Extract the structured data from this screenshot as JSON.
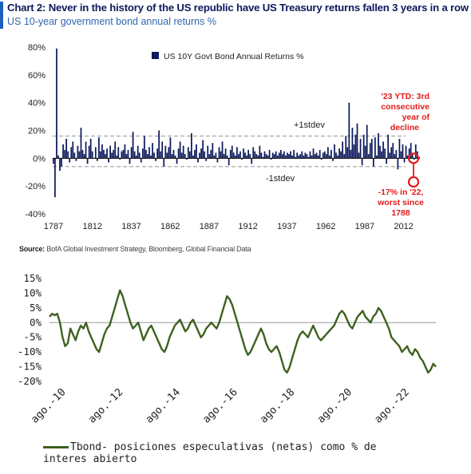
{
  "top_chart": {
    "title": "Chart 2: Never in the history of the US republic have US Treasury returns fallen 3 years in a row",
    "subtitle": "US 10-year government bond annual returns %",
    "source_label": "Source:",
    "source_text": "BofA Global Investment Strategy, Bloomberg, Global Financial Data",
    "annotations": {
      "plus_stdev": "+1stdev",
      "minus_stdev": "-1stdev",
      "ytd_line1": "'23 YTD: 3rd",
      "ytd_line2": "consecutive",
      "ytd_line3": "year of",
      "ytd_line4": "decline",
      "low_line1": "-17% in '22,",
      "low_line2": "worst since",
      "low_line3": "1788"
    },
    "colors": {
      "bars": "#0d1a5c",
      "annotation": "#e31b1b",
      "stdev_line": "#a8a8a8"
    }
  },
  "chart_data": [
    {
      "type": "bar",
      "legend": [
        "US 10Y Govt Bond Annual Returns %"
      ],
      "ylim": [
        -40,
        80
      ],
      "yticks": [
        "80%",
        "60%",
        "40%",
        "20%",
        "0%",
        "-20%",
        "-40%"
      ],
      "xticks": [
        "1787",
        "1812",
        "1837",
        "1862",
        "1887",
        "1912",
        "1937",
        "1962",
        "1987",
        "2012"
      ],
      "x_start": 1787,
      "x_end": 2023,
      "stdev_band": [
        16,
        -6
      ],
      "highlight": {
        "2022": -17,
        "2023": 0
      },
      "values": [
        -4,
        -28,
        79,
        2,
        -9,
        -6,
        10,
        6,
        14,
        5,
        -3,
        8,
        12,
        4,
        -2,
        9,
        5,
        22,
        6,
        3,
        12,
        -4,
        9,
        14,
        5,
        0,
        8,
        -2,
        15,
        5,
        10,
        6,
        3,
        7,
        -3,
        9,
        4,
        6,
        12,
        2,
        8,
        -1,
        5,
        6,
        10,
        3,
        6,
        -4,
        8,
        19,
        5,
        2,
        9,
        4,
        -3,
        7,
        16,
        6,
        3,
        8,
        2,
        11,
        4,
        -2,
        7,
        20,
        5,
        12,
        -6,
        9,
        4,
        8,
        15,
        3,
        6,
        2,
        -4,
        7,
        12,
        4,
        9,
        3,
        -1,
        8,
        5,
        18,
        2,
        6,
        10,
        -3,
        4,
        7,
        13,
        5,
        -2,
        9,
        3,
        6,
        11,
        2,
        4,
        -3,
        8,
        5,
        12,
        3,
        7,
        2,
        -5,
        6,
        9,
        4,
        2,
        8,
        3,
        5,
        -1,
        7,
        4,
        2,
        6,
        3,
        -4,
        8,
        5,
        3,
        2,
        9,
        4,
        1,
        5,
        3,
        2,
        6,
        -1,
        4,
        3,
        5,
        2,
        4,
        6,
        3,
        5,
        2,
        4,
        3,
        5,
        2,
        6,
        1,
        4,
        2,
        3,
        5,
        2,
        4,
        3,
        1,
        5,
        2,
        7,
        3,
        4,
        2,
        6,
        -1,
        4,
        5,
        3,
        8,
        2,
        6,
        -2,
        10,
        4,
        2,
        7,
        5,
        12,
        3,
        16,
        8,
        40,
        6,
        22,
        10,
        17,
        25,
        4,
        14,
        -5,
        17,
        9,
        24,
        3,
        11,
        14,
        -6,
        15,
        2,
        18,
        9,
        5,
        12,
        7,
        -4,
        17,
        4,
        8,
        11,
        3,
        6,
        -8,
        14,
        5,
        10,
        -3,
        9,
        2,
        7,
        11,
        3,
        -1,
        10,
        5,
        1
      ]
    },
    {
      "type": "line",
      "legend": [
        "Tbond- posiciones especulativas (netas) como % de interes abierto"
      ],
      "ylim": [
        -20,
        15
      ],
      "yticks": [
        "15%",
        "10%",
        "5%",
        "0%",
        "-5%",
        "-10%",
        "-15%",
        "-20%"
      ],
      "xticks": [
        "ago.-10",
        "ago.-12",
        "ago.-14",
        "ago.-16",
        "ago.-18",
        "ago.-20",
        "ago.-22"
      ],
      "x_start_year": 2010.0,
      "x_end_year": 2023.5,
      "color": "#3e6120",
      "values": [
        2,
        3,
        2.5,
        3,
        0,
        -5,
        -8,
        -7,
        -2,
        -4,
        -6,
        -3,
        -1,
        -2,
        0,
        -3,
        -5,
        -7,
        -9,
        -10,
        -7,
        -4,
        -2,
        -1,
        2,
        5,
        8,
        11,
        9,
        6,
        3,
        0,
        -2,
        -1,
        0,
        -3,
        -6,
        -4,
        -2,
        -1,
        -3,
        -5,
        -7,
        -9,
        -10,
        -8,
        -5,
        -3,
        -1,
        0,
        1,
        -1,
        -3,
        -2,
        0,
        1,
        -1,
        -3,
        -5,
        -4,
        -2,
        -1,
        0,
        -1,
        -2,
        0,
        3,
        6,
        9,
        8,
        6,
        3,
        0,
        -3,
        -6,
        -9,
        -11,
        -10,
        -8,
        -6,
        -4,
        -2,
        -4,
        -7,
        -9,
        -10,
        -9,
        -8,
        -10,
        -13,
        -16,
        -17,
        -15,
        -12,
        -9,
        -6,
        -4,
        -3,
        -4,
        -5,
        -3,
        -1,
        -3,
        -5,
        -6,
        -5,
        -4,
        -3,
        -2,
        -1,
        1,
        3,
        4,
        3,
        1,
        -1,
        -2,
        0,
        2,
        3,
        4,
        2,
        1,
        0,
        2,
        3,
        5,
        4,
        2,
        0,
        -2,
        -5,
        -6,
        -7,
        -8,
        -10,
        -9,
        -8,
        -10,
        -11,
        -9,
        -10,
        -12,
        -13,
        -15,
        -17,
        -16,
        -14,
        -15
      ]
    }
  ]
}
